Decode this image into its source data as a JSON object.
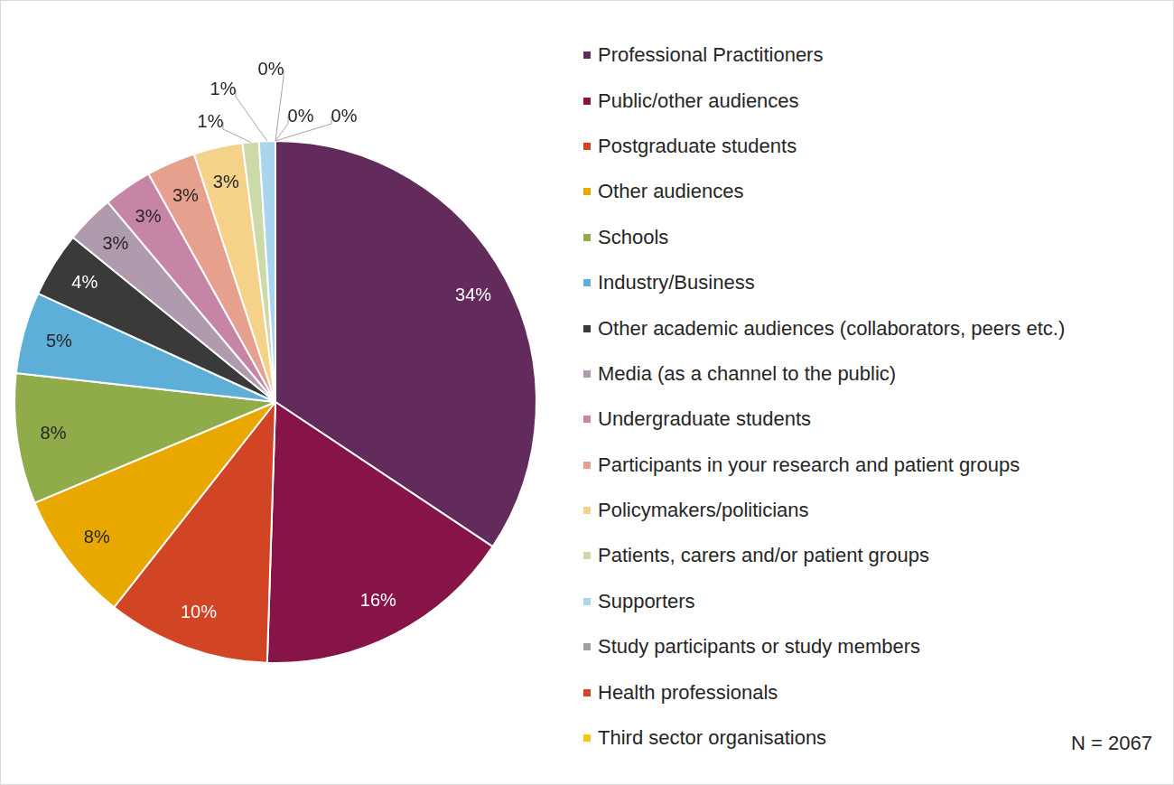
{
  "chart_data": {
    "type": "pie",
    "categories": [
      "Professional Practitioners",
      "Public/other audiences",
      "Postgraduate students",
      "Other audiences",
      "Schools",
      "Industry/Business",
      "Other academic audiences (collaborators, peers etc.)",
      "Media (as a channel to the public)",
      "Undergraduate students",
      "Participants in your research and patient groups",
      "Policymakers/politicians",
      "Patients, carers and/or patient groups",
      "Supporters",
      "Study participants or study members",
      "Health professionals",
      "Third sector organisations"
    ],
    "values": [
      34,
      16,
      10,
      8,
      8,
      5,
      4,
      3,
      3,
      3,
      3,
      1,
      1,
      0,
      0,
      0
    ],
    "value_labels": [
      "34%",
      "16%",
      "10%",
      "8%",
      "8%",
      "5%",
      "4%",
      "3%",
      "3%",
      "3%",
      "3%",
      "1%",
      "1%",
      "0%",
      "0%",
      "0%"
    ],
    "colors": [
      "#632a5c",
      "#861447",
      "#d14424",
      "#e9a800",
      "#8fab4a",
      "#5eafd8",
      "#3a3a3a",
      "#b09aae",
      "#c785a6",
      "#e8a08e",
      "#f5d28a",
      "#cbdaa8",
      "#a9d6ec",
      "#9f9f9f",
      "#d14424",
      "#f7c600"
    ],
    "data_labels": true,
    "legend": "right",
    "annotations": [
      "N = 2067"
    ]
  }
}
